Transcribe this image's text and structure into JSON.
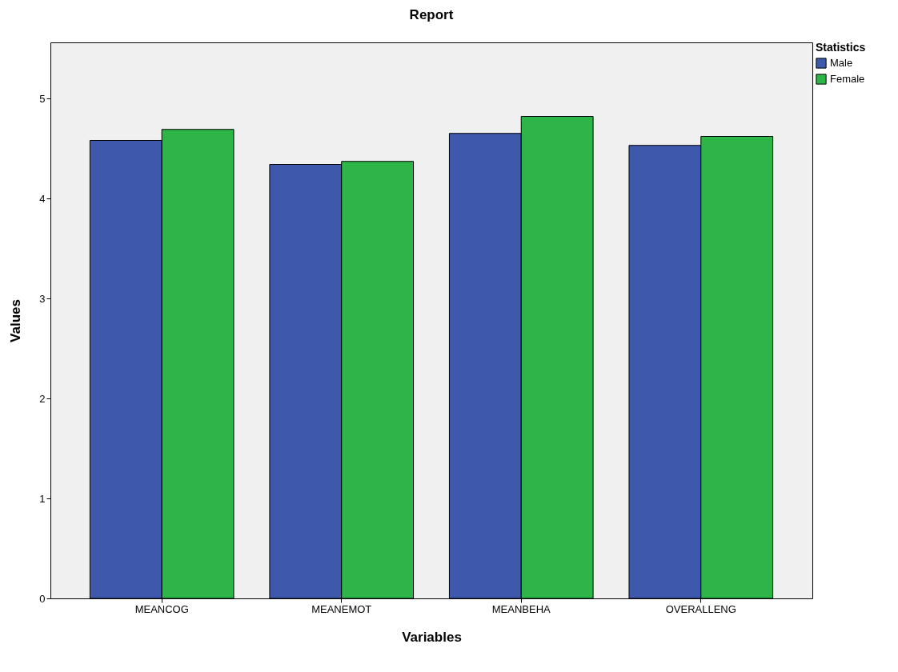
{
  "chart_data": {
    "type": "bar",
    "title": "Report",
    "xlabel": "Variables",
    "ylabel": "Values",
    "legend_title": "Statistics",
    "legend": "top right",
    "categories": [
      "MEANCOG",
      "MEANEMOT",
      "MEANBEHA",
      "OVERALLENG"
    ],
    "series": [
      {
        "name": "Male",
        "color": "#3e58ac",
        "values": [
          4.58,
          4.34,
          4.65,
          4.53
        ]
      },
      {
        "name": "Female",
        "color": "#2eb548",
        "values": [
          4.69,
          4.37,
          4.82,
          4.62
        ]
      }
    ],
    "ylim": [
      0,
      5.56
    ],
    "yticks": [
      0,
      1,
      2,
      3,
      4,
      5
    ]
  }
}
